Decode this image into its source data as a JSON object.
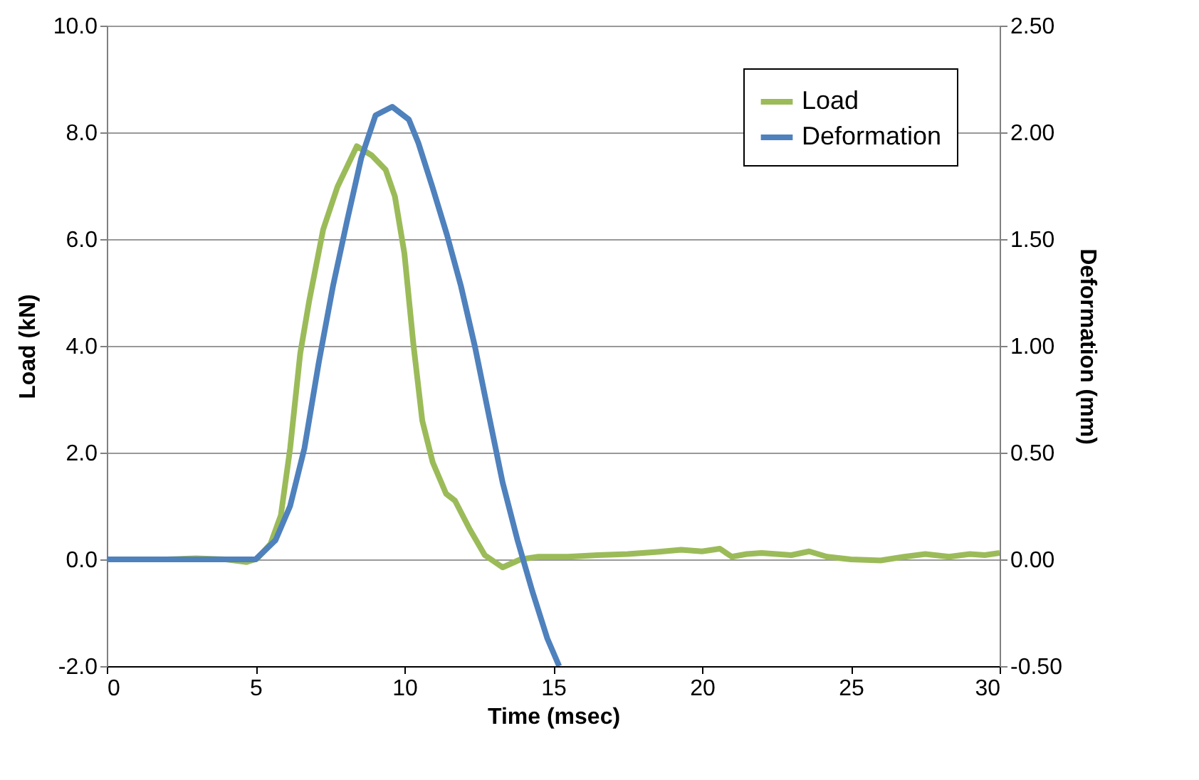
{
  "chart_data": {
    "type": "line",
    "xlabel": "Time (msec)",
    "ylabel": "Load (kN)",
    "y2label": "Deformation (mm)",
    "xlim": [
      0,
      30
    ],
    "xticks": [
      0,
      5,
      10,
      15,
      20,
      25,
      30
    ],
    "ylim": [
      -2,
      10
    ],
    "yticks": [
      {
        "value": -2,
        "label": "-2.0"
      },
      {
        "value": 0,
        "label": "0.0"
      },
      {
        "value": 2,
        "label": "2.0"
      },
      {
        "value": 4,
        "label": "4.0"
      },
      {
        "value": 6,
        "label": "6.0"
      },
      {
        "value": 8,
        "label": "8.0"
      },
      {
        "value": 10,
        "label": "10.0"
      }
    ],
    "y2lim": [
      -0.5,
      2.5
    ],
    "y2ticks": [
      {
        "value": -0.5,
        "label": "-0.50"
      },
      {
        "value": 0,
        "label": "0.00"
      },
      {
        "value": 0.5,
        "label": "0.50"
      },
      {
        "value": 1,
        "label": "1.00"
      },
      {
        "value": 1.5,
        "label": "1.50"
      },
      {
        "value": 2,
        "label": "2.00"
      },
      {
        "value": 2.5,
        "label": "2.50"
      }
    ],
    "grid": "y",
    "legend": "top right",
    "marker": "none",
    "line_style": "solid",
    "series": [
      {
        "name": "Load",
        "color": "#9bbb59",
        "x": [
          0,
          1,
          2,
          3,
          4,
          4.7,
          5.04,
          5.5,
          5.85,
          6.16,
          6.5,
          6.8,
          7.27,
          7.75,
          8.4,
          8.9,
          9.37,
          9.68,
          10.0,
          10.3,
          10.6,
          10.95,
          11.4,
          11.7,
          12.2,
          12.7,
          13.3,
          13.9,
          14.5,
          15.5,
          16.5,
          17.5,
          18.5,
          19.3,
          20.0,
          20.6,
          21.0,
          21.5,
          22.0,
          23.0,
          23.6,
          24.2,
          25.0,
          26.0,
          26.8,
          27.5,
          28.3,
          29.0,
          29.5,
          30.0
        ],
        "values": [
          0,
          0,
          0,
          0.02,
          0,
          -0.05,
          0.01,
          0.29,
          0.83,
          2.08,
          3.86,
          4.84,
          6.18,
          6.98,
          7.74,
          7.57,
          7.3,
          6.8,
          5.73,
          4.04,
          2.6,
          1.82,
          1.23,
          1.1,
          0.56,
          0.08,
          -0.15,
          0,
          0.05,
          0.05,
          0.08,
          0.1,
          0.14,
          0.18,
          0.15,
          0.2,
          0.05,
          0.1,
          0.12,
          0.08,
          0.15,
          0.05,
          0.0,
          -0.02,
          0.05,
          0.1,
          0.05,
          0.1,
          0.08,
          0.12
        ]
      },
      {
        "name": "Deformation",
        "color": "#4f81bd",
        "axis": "y2",
        "x": [
          0,
          1,
          2,
          3,
          4,
          5.0,
          5.67,
          6.16,
          6.64,
          7.12,
          7.6,
          8.08,
          8.55,
          9.03,
          9.59,
          10.15,
          10.47,
          10.95,
          11.43,
          11.9,
          12.38,
          12.86,
          13.3,
          13.8,
          14.3,
          14.8,
          15.2
        ],
        "values": [
          0,
          0,
          0,
          0,
          0,
          0,
          0.09,
          0.25,
          0.52,
          0.92,
          1.28,
          1.59,
          1.88,
          2.08,
          2.12,
          2.06,
          1.95,
          1.74,
          1.52,
          1.28,
          0.99,
          0.66,
          0.36,
          0.09,
          -0.15,
          -0.37,
          -0.5
        ]
      }
    ]
  }
}
